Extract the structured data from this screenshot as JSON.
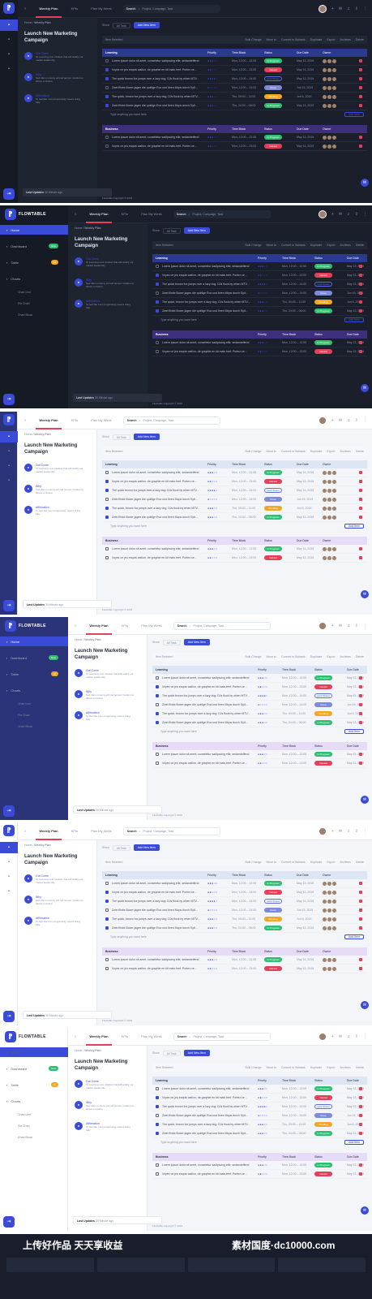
{
  "app": {
    "brand": "FLOWTABLE"
  },
  "tabs": [
    "Weekly Plan",
    "KPIs",
    "Plan My Week"
  ],
  "search": {
    "label": "Search",
    "placeholder": "Project, Campaign, Task"
  },
  "controls": {
    "show_label": "Show",
    "show_value": "All Task",
    "add_button": "Add New Item",
    "filter": "Filter",
    "sort": "Sort"
  },
  "breadcrumb": {
    "home": "Home",
    "current": "Weekly Plan"
  },
  "campaign_title": "Launch New Marketing Campaign",
  "steps": [
    {
      "title": "Out Come",
      "desc": "To Learning new mindest that will solidly our market leadership"
    },
    {
      "title": "Why",
      "desc": "Sed diam nonumy eirmod tempor invidunt ut labore et dolore"
    },
    {
      "title": "Affirmation",
      "desc": "To feel like I am progressing means living fully"
    }
  ],
  "toast": {
    "label": "Last Updates",
    "time": "30 Minute ago"
  },
  "selection": {
    "count": "Item Selected"
  },
  "actions": [
    "Bulk Change",
    "Move to",
    "Convert to Subtask",
    "Duplicate",
    "Export",
    "Archives",
    "Delete"
  ],
  "columns": {
    "priority": "Priority",
    "time": "Time Block",
    "status": "Status",
    "due": "Due Date",
    "owner": "Owner"
  },
  "groups": [
    {
      "name": "Learning",
      "rows": [
        {
          "text": "Lorem ipsum dolor sit amet, consetetur sadipscing elitr, sedandelfend",
          "priority": "●●●○○",
          "time": "Mon, 12:00 – 12:55",
          "status": "In Progress",
          "status_kind": "prog",
          "due": "May 13, 2019",
          "checked": false
        },
        {
          "text": "Voyez ce jeu exquis wallon, de graphie en kit mais bref. Portez ce...",
          "priority": "●●○○○",
          "time": "Mon, 12:00 – 13:00",
          "status": "Cancel",
          "status_kind": "cancel",
          "due": "May 13, 2019",
          "checked": true
        },
        {
          "text": "The quick brown fox jumps over a lazy dog. DJs flock by when MTV...",
          "priority": "●●●●○",
          "time": "Mon, 12:00 – 14:00",
          "status": "Hold Status",
          "status_kind": "hold",
          "due": "May 13, 2019",
          "checked": true
        },
        {
          "text": "Zwei flinke Boxer jagen die quirlige Eva und ihren Mops durch Sylt...",
          "priority": "●○○○○",
          "time": "Mon, 12:00 – 14:00",
          "status": "Done",
          "status_kind": "done",
          "due": "Jun 19, 2019",
          "checked": false
        },
        {
          "text": "The quick, brown fox jumps over a lazy dog. DJs flock by when MTV...",
          "priority": "●●●○○",
          "time": "Thu, 09:00 – 11:00",
          "status": "Pending",
          "status_kind": "pend",
          "due": "Jun 6, 2019",
          "checked": true
        },
        {
          "text": "Zwei flinke Boxer jagen die quirlige Eva und ihren Mops durch Sylt...",
          "priority": "●●●○○",
          "time": "Thu, 24:00 – 06:00",
          "status": "In Progress",
          "status_kind": "prog",
          "due": "May 13, 2019",
          "checked": true
        }
      ],
      "add_placeholder": "Type anything you want here",
      "add_button": "Add Item"
    },
    {
      "name": "Business",
      "rows": [
        {
          "text": "Lorem ipsum dolor sit amet, consetetur sadipscing elitr, sedandelfend",
          "priority": "●●●○○",
          "time": "Mon, 12:00 – 12:55",
          "status": "In Progress",
          "status_kind": "prog",
          "due": "May 13, 2019",
          "checked": false
        },
        {
          "text": "Voyez ce jeu exquis wallon, de graphie en kit mais bref. Portez ce...",
          "priority": "●●○○○",
          "time": "Mon, 12:00 – 13:00",
          "status": "Cancel",
          "status_kind": "cancel",
          "due": "May 13, 2019",
          "checked": false
        }
      ]
    }
  ],
  "footer": "Flowtable Copyright © 2019",
  "sidebar_nav": [
    {
      "label": "Home",
      "badge": ""
    },
    {
      "label": "Dashboard",
      "badge": "New",
      "badge_kind": "green"
    },
    {
      "label": "Table",
      "badge": "10",
      "badge_kind": "orange"
    },
    {
      "label": "Charts",
      "badge": ""
    }
  ],
  "sidebar_sub": [
    "Chart Line",
    "Pie Chart",
    "Chart Block"
  ],
  "watermark": {
    "left": "上传好作品 天天享收益",
    "right": "素材国度·dc10000.com"
  }
}
